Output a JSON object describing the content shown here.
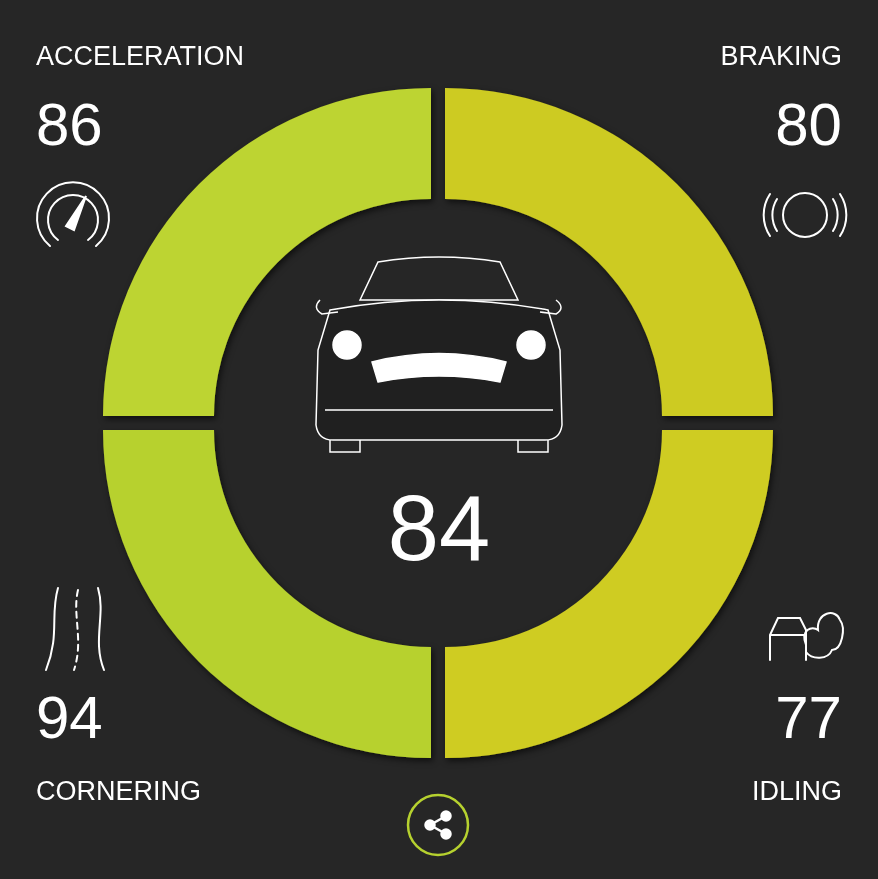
{
  "chart_data": {
    "type": "donut",
    "categories": [
      "ACCELERATION",
      "BRAKING",
      "CORNERING",
      "IDLING"
    ],
    "values": [
      86,
      80,
      94,
      77
    ],
    "colors": [
      "#bdd430",
      "#cdcb22",
      "#b7d12f",
      "#cfcc21"
    ],
    "score": 84,
    "data_labels": true
  }
}
